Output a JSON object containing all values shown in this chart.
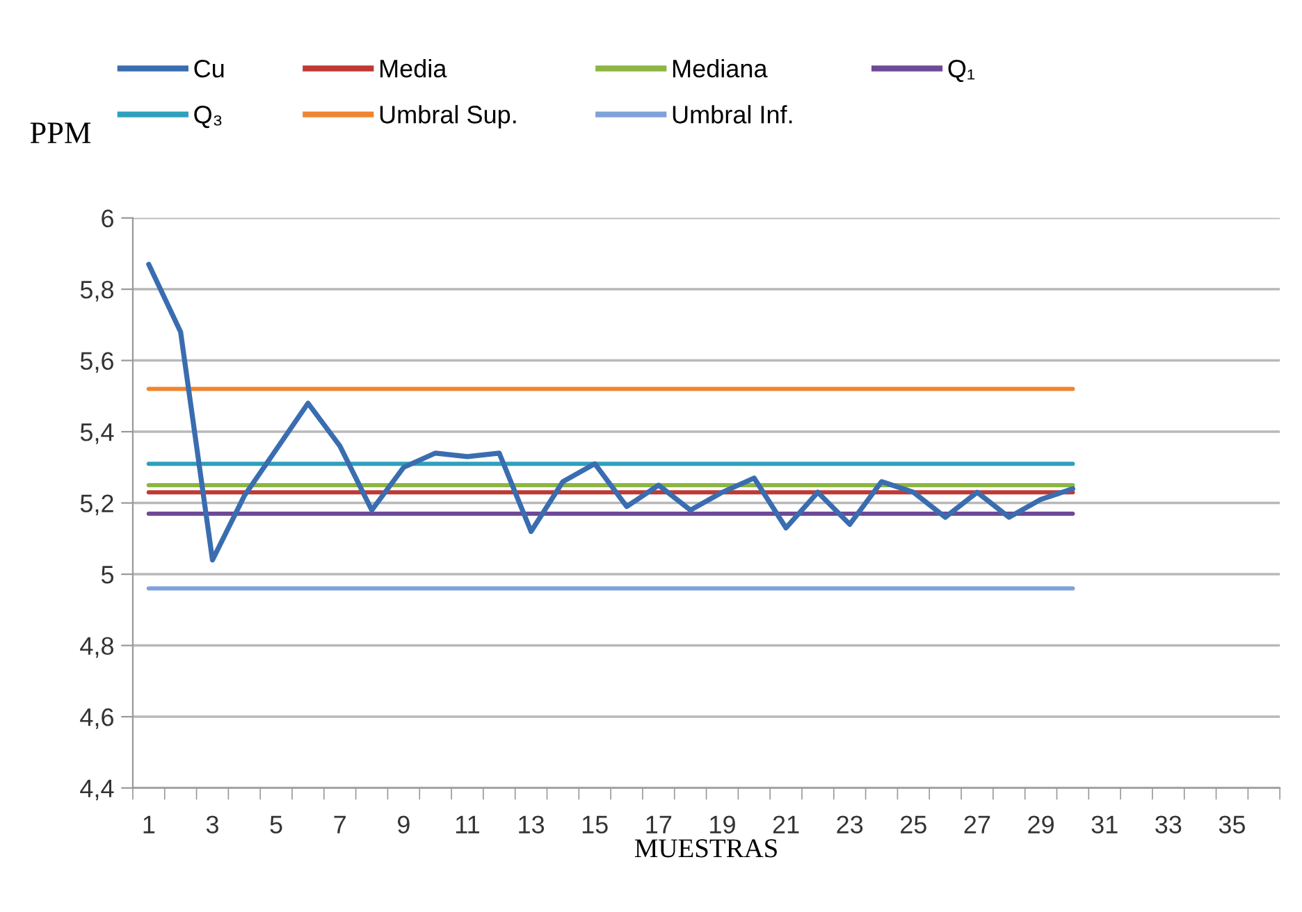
{
  "chart_data": {
    "type": "line",
    "ylabel": "PPM",
    "xlabel": "MUESTRAS",
    "categories": [
      "1",
      null,
      "3",
      null,
      "5",
      null,
      "7",
      null,
      "9",
      null,
      "11",
      null,
      "13",
      null,
      "15",
      null,
      "17",
      null,
      "19",
      null,
      "21",
      null,
      "23",
      null,
      "25",
      null,
      "27",
      null,
      "29",
      null,
      "31",
      null,
      "33",
      null,
      "35",
      null
    ],
    "series": [
      {
        "name": "Cu",
        "color": "#3a6db0",
        "values": [
          5.87,
          5.68,
          5.04,
          5.22,
          5.35,
          5.48,
          5.36,
          5.18,
          5.3,
          5.34,
          5.33,
          5.34,
          5.12,
          5.26,
          5.31,
          5.19,
          5.25,
          5.18,
          5.23,
          5.27,
          5.13,
          5.23,
          5.14,
          5.26,
          5.23,
          5.16,
          5.23,
          5.16,
          5.21,
          5.24,
          null,
          null,
          null,
          null,
          null,
          null
        ]
      },
      {
        "name": "Media",
        "color": "#be3a35",
        "values": [
          5.23,
          5.23,
          5.23,
          5.23,
          5.23,
          5.23,
          5.23,
          5.23,
          5.23,
          5.23,
          5.23,
          5.23,
          5.23,
          5.23,
          5.23,
          5.23,
          5.23,
          5.23,
          5.23,
          5.23,
          5.23,
          5.23,
          5.23,
          5.23,
          5.23,
          5.23,
          5.23,
          5.23,
          5.23,
          5.23,
          null,
          null,
          null,
          null,
          null,
          null
        ]
      },
      {
        "name": "Mediana",
        "color": "#8db542",
        "values": [
          5.25,
          5.25,
          5.25,
          5.25,
          5.25,
          5.25,
          5.25,
          5.25,
          5.25,
          5.25,
          5.25,
          5.25,
          5.25,
          5.25,
          5.25,
          5.25,
          5.25,
          5.25,
          5.25,
          5.25,
          5.25,
          5.25,
          5.25,
          5.25,
          5.25,
          5.25,
          5.25,
          5.25,
          5.25,
          5.25,
          null,
          null,
          null,
          null,
          null,
          null
        ]
      },
      {
        "name": "Q₁",
        "color": "#6e4a96",
        "values": [
          5.17,
          5.17,
          5.17,
          5.17,
          5.17,
          5.17,
          5.17,
          5.17,
          5.17,
          5.17,
          5.17,
          5.17,
          5.17,
          5.17,
          5.17,
          5.17,
          5.17,
          5.17,
          5.17,
          5.17,
          5.17,
          5.17,
          5.17,
          5.17,
          5.17,
          5.17,
          5.17,
          5.17,
          5.17,
          5.17,
          null,
          null,
          null,
          null,
          null,
          null
        ]
      },
      {
        "name": "Q₃",
        "color": "#2fa0bd",
        "values": [
          5.31,
          5.31,
          5.31,
          5.31,
          5.31,
          5.31,
          5.31,
          5.31,
          5.31,
          5.31,
          5.31,
          5.31,
          5.31,
          5.31,
          5.31,
          5.31,
          5.31,
          5.31,
          5.31,
          5.31,
          5.31,
          5.31,
          5.31,
          5.31,
          5.31,
          5.31,
          5.31,
          5.31,
          5.31,
          5.31,
          null,
          null,
          null,
          null,
          null,
          null
        ]
      },
      {
        "name": "Umbral Sup.",
        "color": "#ef8530",
        "values": [
          5.52,
          5.52,
          5.52,
          5.52,
          5.52,
          5.52,
          5.52,
          5.52,
          5.52,
          5.52,
          5.52,
          5.52,
          5.52,
          5.52,
          5.52,
          5.52,
          5.52,
          5.52,
          5.52,
          5.52,
          5.52,
          5.52,
          5.52,
          5.52,
          5.52,
          5.52,
          5.52,
          5.52,
          5.52,
          5.52,
          null,
          null,
          null,
          null,
          null,
          null
        ]
      },
      {
        "name": "Umbral Inf.",
        "color": "#7fa2d8",
        "values": [
          4.96,
          4.96,
          4.96,
          4.96,
          4.96,
          4.96,
          4.96,
          4.96,
          4.96,
          4.96,
          4.96,
          4.96,
          4.96,
          4.96,
          4.96,
          4.96,
          4.96,
          4.96,
          4.96,
          4.96,
          4.96,
          4.96,
          4.96,
          4.96,
          4.96,
          4.96,
          4.96,
          4.96,
          4.96,
          4.96,
          null,
          null,
          null,
          null,
          null,
          null
        ]
      }
    ],
    "ylim": [
      4.4,
      6
    ],
    "yticks": [
      {
        "value": 4.4,
        "label": "4,4"
      },
      {
        "value": 4.6,
        "label": "4,6"
      },
      {
        "value": 4.8,
        "label": "4,8"
      },
      {
        "value": 5,
        "label": "5"
      },
      {
        "value": 5.2,
        "label": "5,2"
      },
      {
        "value": 5.4,
        "label": "5,4"
      },
      {
        "value": 5.6,
        "label": "5,6"
      },
      {
        "value": 5.8,
        "label": "5,8"
      },
      {
        "value": 6,
        "label": "6"
      }
    ],
    "grid": "y",
    "legend": "top",
    "marker": "none",
    "line_style": "solid"
  }
}
